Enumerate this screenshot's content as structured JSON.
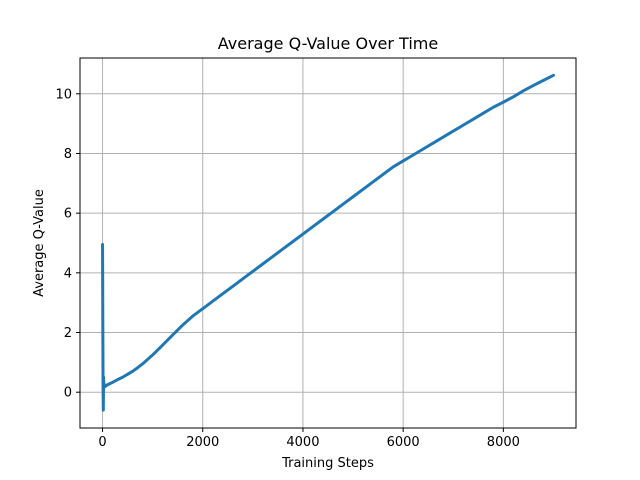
{
  "chart_data": {
    "type": "line",
    "title": "Average Q-Value Over Time",
    "xlabel": "Training Steps",
    "ylabel": "Average Q-Value",
    "xlim": [
      -450,
      9450
    ],
    "ylim": [
      -1.2,
      11.2
    ],
    "xticks": [
      0,
      2000,
      4000,
      6000,
      8000
    ],
    "yticks": [
      0,
      2,
      4,
      6,
      8,
      10
    ],
    "grid": true,
    "series_color": "#1f77b4",
    "series": [
      {
        "x": [
          0,
          5,
          10,
          15,
          20,
          25,
          30,
          40,
          60,
          100,
          200,
          300,
          400,
          500,
          600,
          700,
          800,
          900,
          1000,
          1200,
          1400,
          1600,
          1800,
          2000,
          2200,
          2400,
          2600,
          2800,
          3000,
          3200,
          3400,
          3600,
          3800,
          4000,
          4200,
          4400,
          4600,
          4800,
          5000,
          5200,
          5400,
          5600,
          5800,
          6000,
          6200,
          6400,
          6600,
          6800,
          7000,
          7200,
          7400,
          7600,
          7800,
          8000,
          8200,
          8400,
          8600,
          8800,
          9000
        ],
        "values": [
          4.95,
          2.5,
          0.2,
          -0.6,
          0.5,
          0.3,
          0.15,
          0.25,
          0.2,
          0.25,
          0.33,
          0.42,
          0.5,
          0.6,
          0.7,
          0.82,
          0.95,
          1.1,
          1.25,
          1.58,
          1.92,
          2.25,
          2.55,
          2.8,
          3.05,
          3.3,
          3.55,
          3.8,
          4.05,
          4.3,
          4.55,
          4.8,
          5.05,
          5.3,
          5.55,
          5.8,
          6.05,
          6.3,
          6.55,
          6.8,
          7.05,
          7.3,
          7.55,
          7.75,
          7.95,
          8.15,
          8.35,
          8.55,
          8.75,
          8.95,
          9.15,
          9.35,
          9.55,
          9.72,
          9.9,
          10.1,
          10.28,
          10.45,
          10.62
        ]
      }
    ]
  }
}
